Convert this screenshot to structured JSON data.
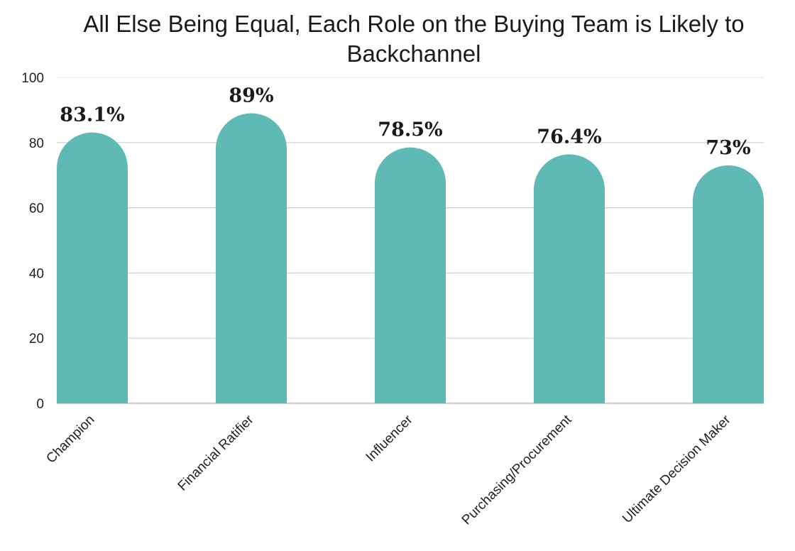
{
  "chart_data": {
    "type": "bar",
    "title": "All Else Being Equal, Each Role on the Buying Team is Likely to Backchannel",
    "title_lines": [
      "All Else Being Equal, Each Role on the Buying Team is Likely to",
      "Backchannel"
    ],
    "categories": [
      "Champion",
      "Financial Ratifier",
      "Influencer",
      "Purchasing/Procurement",
      "Ultimate Decision Maker"
    ],
    "values": [
      83.1,
      89,
      78.5,
      76.4,
      73
    ],
    "value_labels": [
      "83.1%",
      "89%",
      "78.5%",
      "76.4%",
      "73%"
    ],
    "xlabel": "",
    "ylabel": "",
    "ylim": [
      0,
      100
    ],
    "yticks": [
      0,
      20,
      40,
      60,
      80,
      100
    ],
    "grid": true,
    "legend": "none",
    "bar_color": "#5fbab5"
  }
}
